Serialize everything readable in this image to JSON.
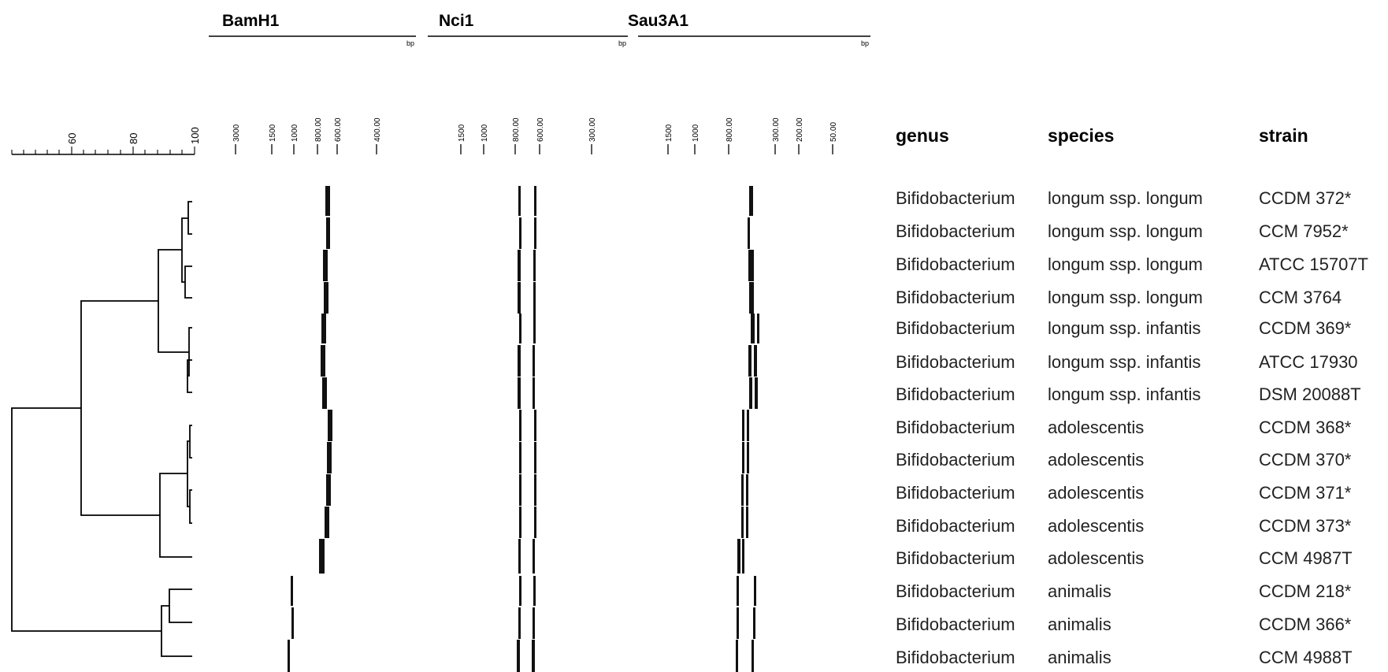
{
  "enzymes": [
    {
      "name": "BamH1",
      "unit": "bp",
      "ladder": [
        "3000",
        "1500",
        "1000",
        "800.00",
        "600.00",
        "400.00"
      ]
    },
    {
      "name": "Nci1",
      "unit": "bp",
      "ladder": [
        "1500",
        "1000",
        "800.00",
        "600.00",
        "300.00"
      ]
    },
    {
      "name": "Sau3A1",
      "unit": "bp",
      "ladder": [
        "1500",
        "1000",
        "800.00",
        "300.00",
        "200.00",
        "50.00"
      ]
    }
  ],
  "similarity_scale": {
    "labels": [
      "60",
      "80",
      "100"
    ]
  },
  "columns": {
    "genus": "genus",
    "species": "species",
    "strain": "strain"
  },
  "strains": [
    {
      "genus": "Bifidobacterium",
      "species": "longum ssp. longum",
      "strain": "CCDM 372*"
    },
    {
      "genus": "Bifidobacterium",
      "species": "longum ssp. longum",
      "strain": "CCM 7952*"
    },
    {
      "genus": "Bifidobacterium",
      "species": "longum ssp. longum",
      "strain": "ATCC 15707T"
    },
    {
      "genus": "Bifidobacterium",
      "species": "longum ssp. longum",
      "strain": "CCM 3764"
    },
    {
      "genus": "Bifidobacterium",
      "species": "longum ssp. infantis",
      "strain": "CCDM 369*"
    },
    {
      "genus": "Bifidobacterium",
      "species": "longum ssp. infantis",
      "strain": "ATCC 17930"
    },
    {
      "genus": "Bifidobacterium",
      "species": "longum ssp. infantis",
      "strain": "DSM 20088T"
    },
    {
      "genus": "Bifidobacterium",
      "species": "adolescentis",
      "strain": "CCDM 368*"
    },
    {
      "genus": "Bifidobacterium",
      "species": "adolescentis",
      "strain": "CCDM 370*"
    },
    {
      "genus": "Bifidobacterium",
      "species": "adolescentis",
      "strain": "CCDM 371*"
    },
    {
      "genus": "Bifidobacterium",
      "species": "adolescentis",
      "strain": "CCDM 373*"
    },
    {
      "genus": "Bifidobacterium",
      "species": "adolescentis",
      "strain": "CCM 4987T"
    },
    {
      "genus": "Bifidobacterium",
      "species": "animalis",
      "strain": "CCDM 218*"
    },
    {
      "genus": "Bifidobacterium",
      "species": "animalis",
      "strain": "CCDM 366*"
    },
    {
      "genus": "Bifidobacterium",
      "species": "animalis",
      "strain": "CCM 4988T"
    }
  ]
}
